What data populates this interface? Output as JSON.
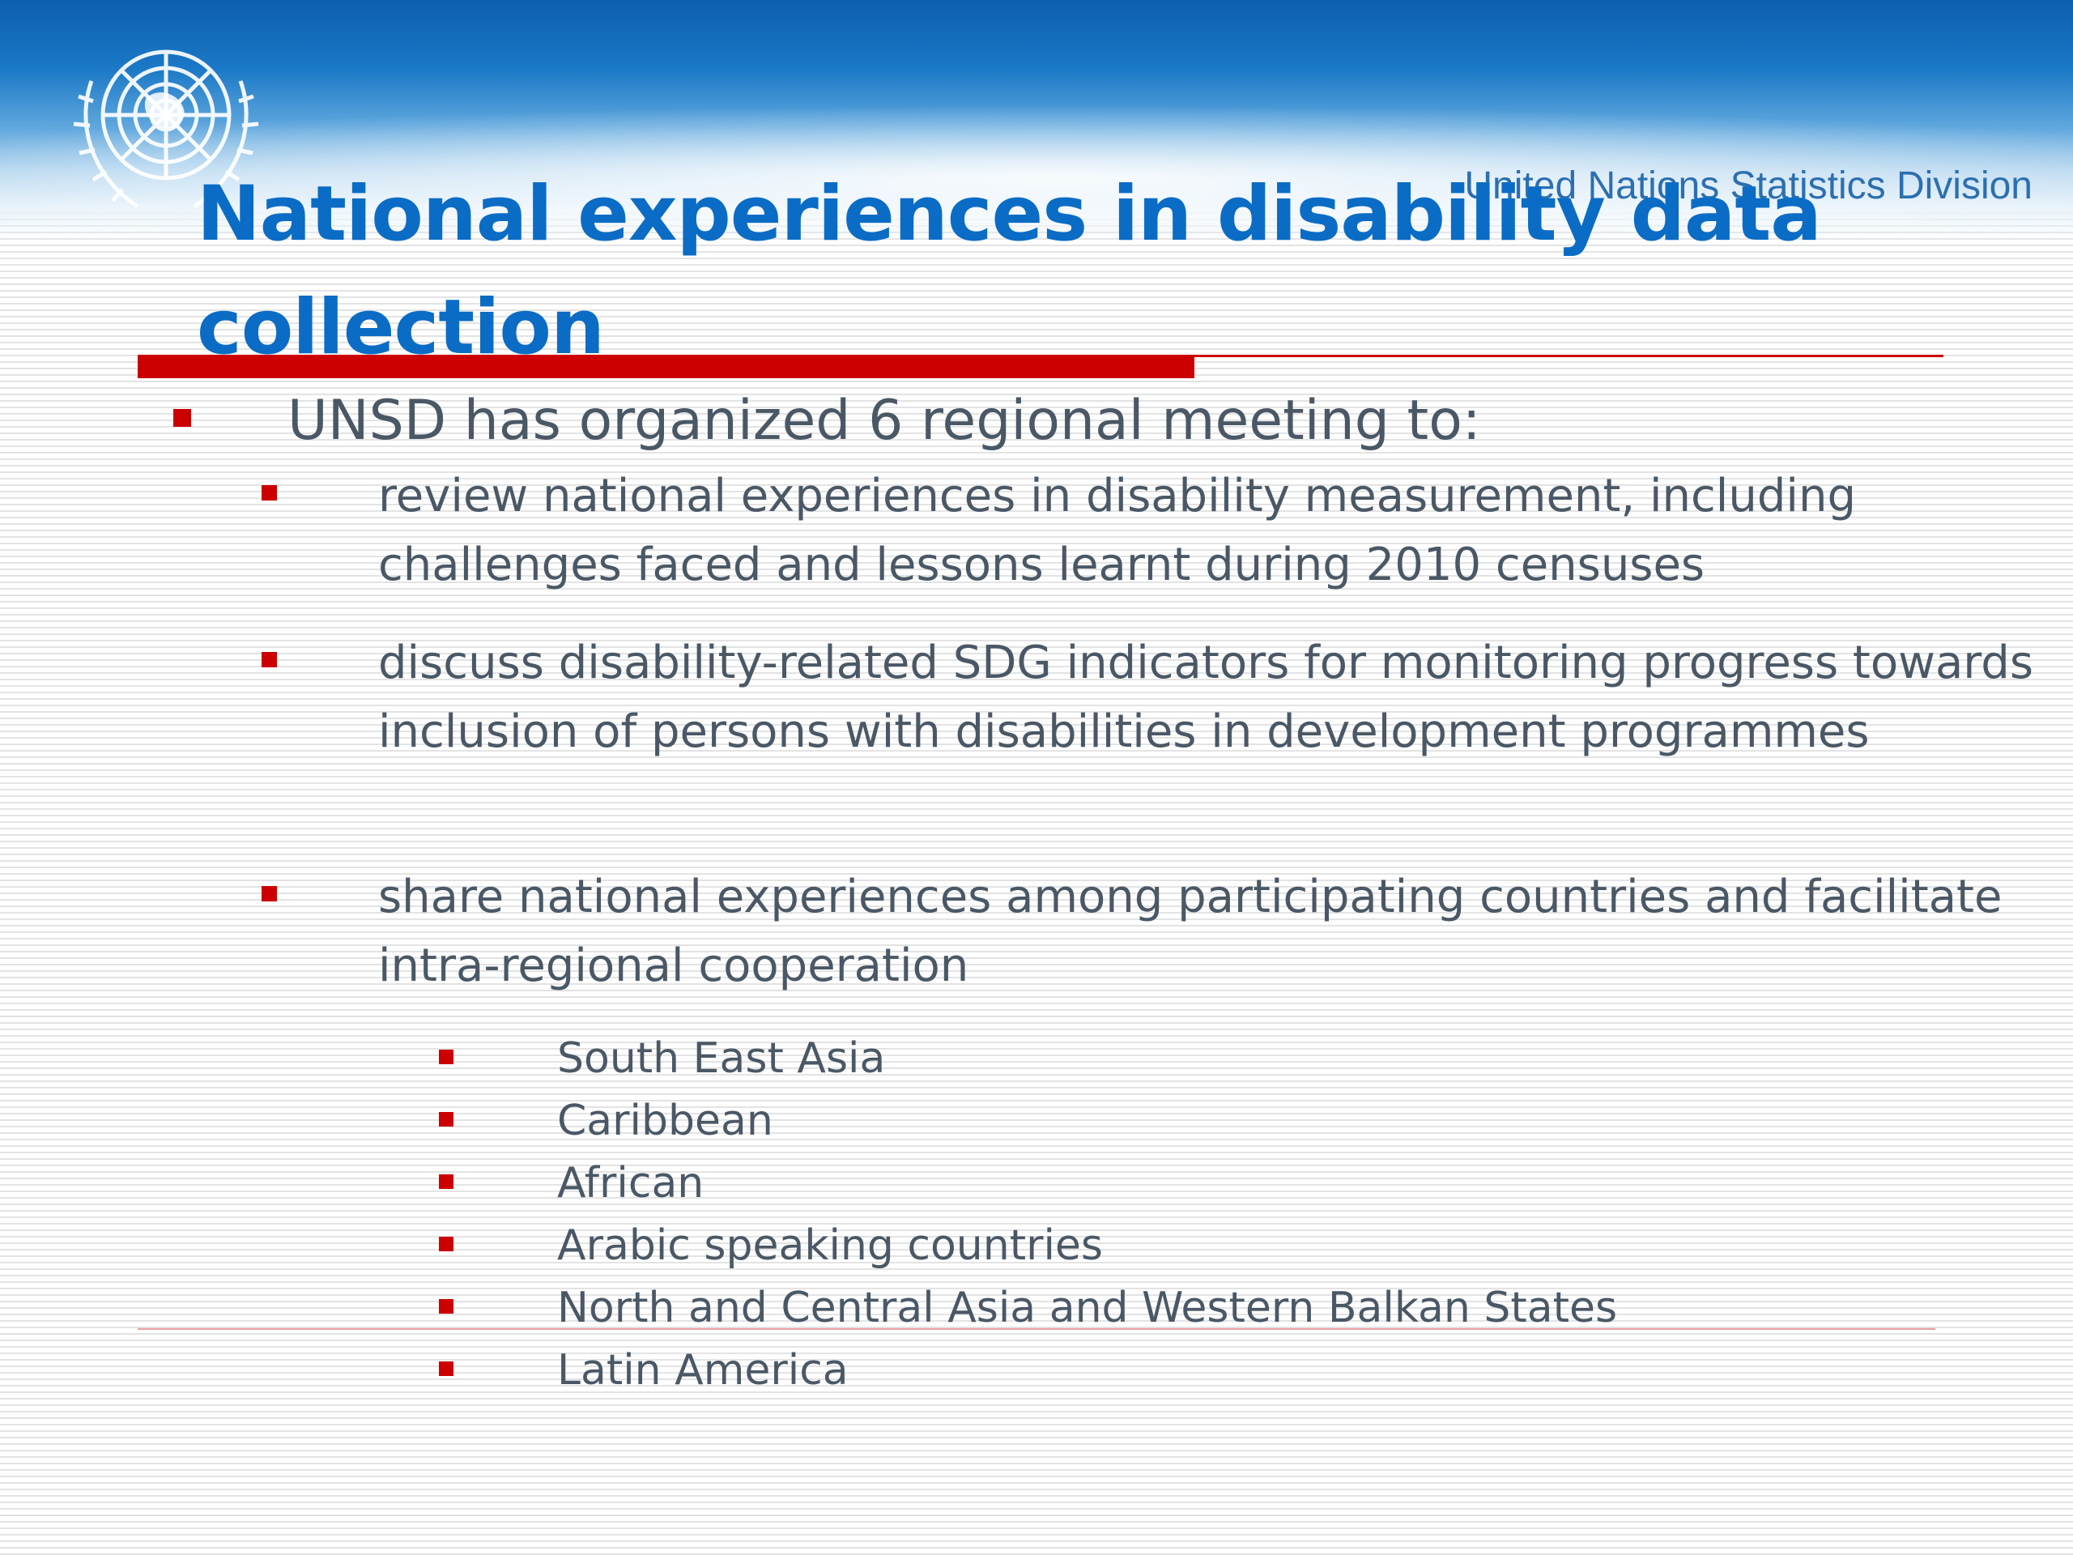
{
  "header": {
    "division": "United Nations Statistics Division",
    "logo_icon": "un-emblem-icon"
  },
  "title": "National experiences in disability data collection",
  "colors": {
    "title": "#0b6cc5",
    "bullet": "#cc0000",
    "body_text": "#4a5866",
    "rule": "#cc0000",
    "header_blue": "#1a78c6"
  },
  "main_bullet": "UNSD has organized 6 regional meeting to:",
  "sub_bullets": [
    "review national experiences in disability measurement, including challenges faced and lessons learnt during 2010 censuses",
    "discuss disability-related SDG indicators for monitoring progress towards inclusion of persons with disabilities in development programmes",
    "share national experiences among participating countries and facilitate  intra-regional cooperation"
  ],
  "regions": [
    "South East Asia",
    "Caribbean",
    "African",
    "Arabic speaking countries",
    "North and Central Asia and Western Balkan States",
    "Latin America"
  ]
}
